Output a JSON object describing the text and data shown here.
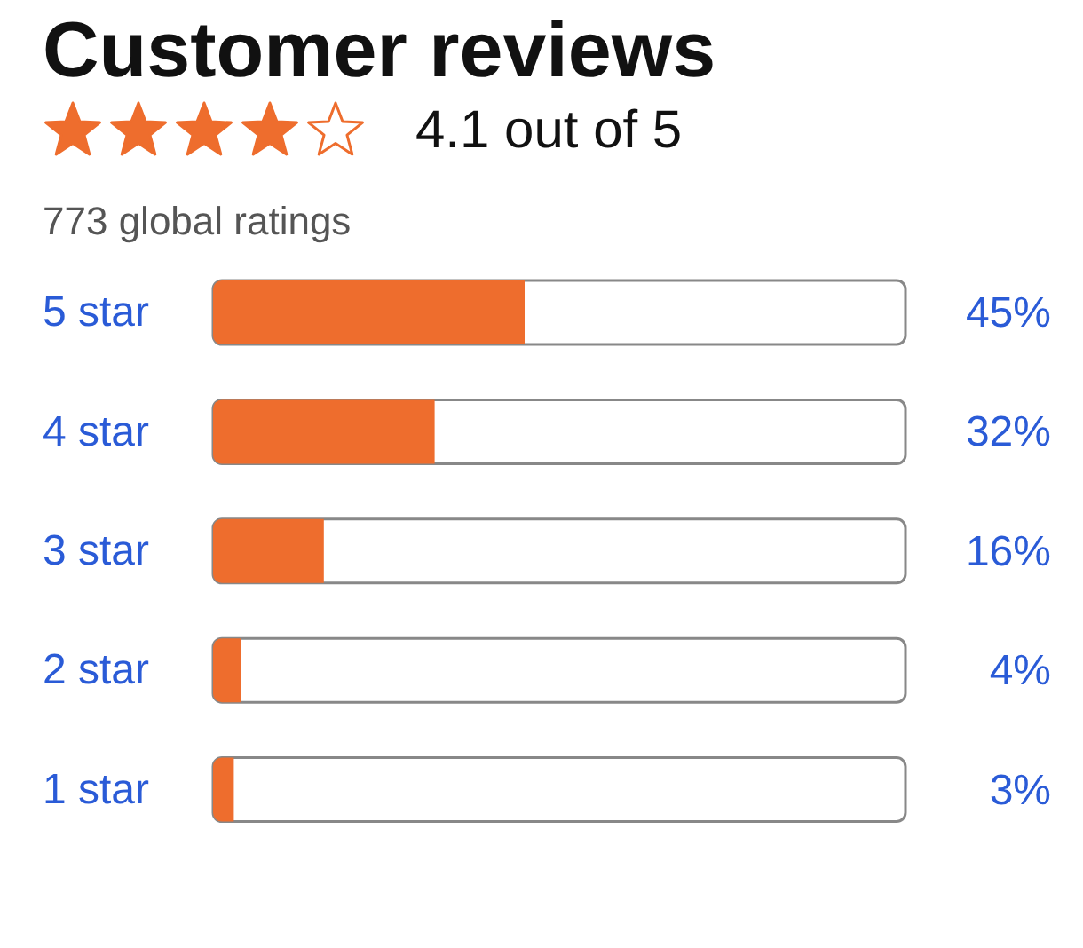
{
  "chart_data": {
    "type": "bar",
    "orientation": "horizontal",
    "title": "Customer reviews",
    "subtitle": "4.1 out of 5",
    "annotations": [
      "773 global ratings"
    ],
    "categories": [
      "5 star",
      "4 star",
      "3 star",
      "2 star",
      "1 star"
    ],
    "values": [
      45,
      32,
      16,
      4,
      3
    ],
    "value_labels": [
      "45%",
      "32%",
      "16%",
      "4%",
      "3%"
    ],
    "color": "#ee6d2d",
    "xlim": [
      0,
      100
    ],
    "tick_labels": "y"
  }
}
